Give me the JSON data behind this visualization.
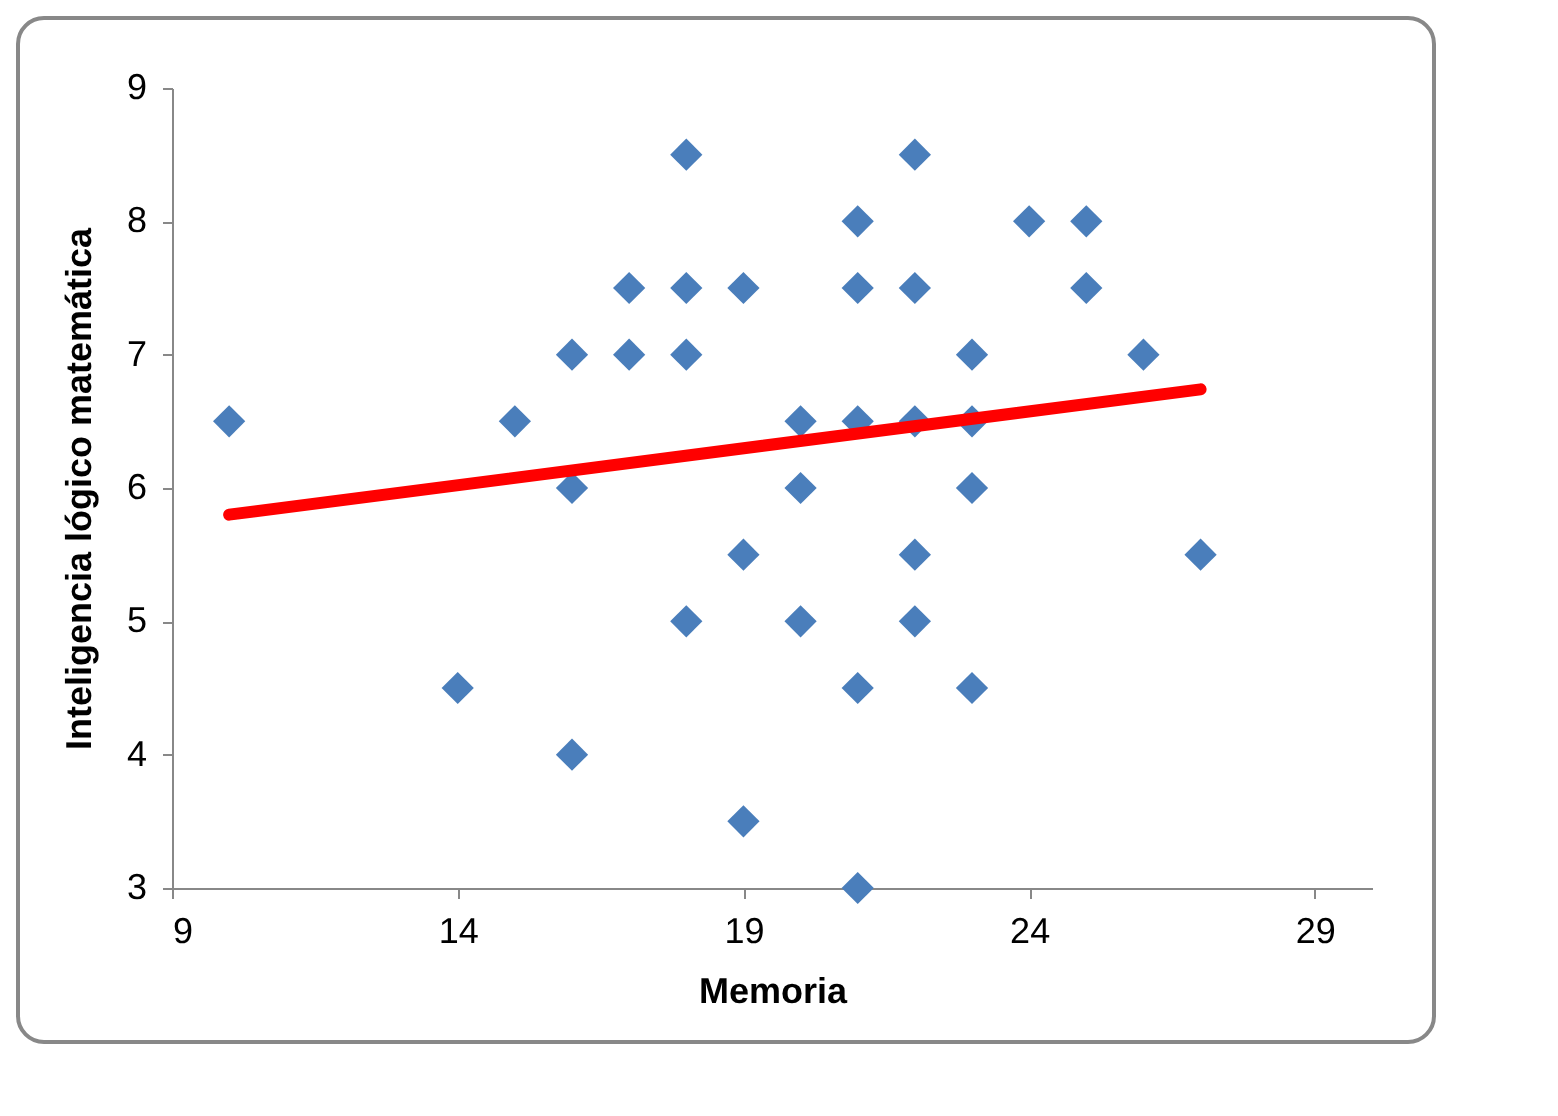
{
  "chart_data": {
    "type": "scatter",
    "xlabel": "Memoria",
    "ylabel": "Inteligencia lógico matemática",
    "xlim": [
      9,
      30
    ],
    "xticks": [
      9,
      14,
      19,
      24,
      29
    ],
    "ylim": [
      3,
      9
    ],
    "yticks": [
      3,
      4,
      5,
      6,
      7,
      8,
      9
    ],
    "grid": false,
    "marker": "diamond",
    "series": [
      {
        "color": "#4a7ebb",
        "x": [
          10,
          14,
          15,
          16,
          16,
          16,
          17,
          17,
          18,
          18,
          18,
          18,
          19,
          19,
          19,
          20,
          20,
          20,
          21,
          21,
          21,
          21,
          21,
          22,
          22,
          22,
          22,
          22,
          23,
          23,
          23,
          23,
          24,
          25,
          25,
          26,
          27
        ],
        "values": [
          6.5,
          4.5,
          6.5,
          7,
          6,
          4,
          7.5,
          7,
          8.5,
          7.5,
          7,
          5,
          7.5,
          5.5,
          3.5,
          6.5,
          6,
          5,
          8,
          7.5,
          6.5,
          4.5,
          3,
          8.5,
          7.5,
          6.5,
          5.5,
          5,
          7,
          6.5,
          6,
          4.5,
          8,
          8,
          7.5,
          7,
          5.5
        ]
      },
      {
        "type": "line",
        "color": "#ff0000",
        "marker": "none",
        "line_style": "solid",
        "x": [
          10,
          27
        ],
        "values": [
          5.8,
          6.74
        ]
      }
    ]
  }
}
